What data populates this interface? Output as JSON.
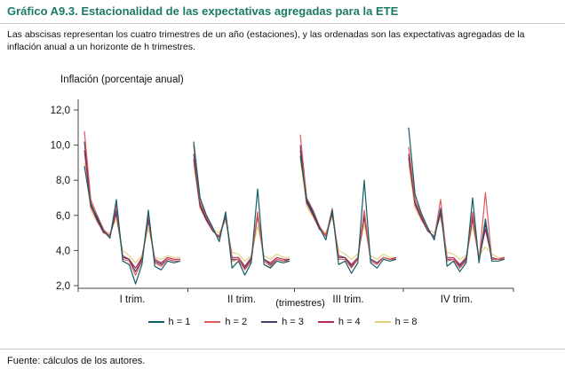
{
  "header": {
    "title": "Gráfico A9.3. Estacionalidad de las expectativas agregadas para la ETE"
  },
  "subtitle": "Las abscisas representan los cuatro trimestres de un año (estaciones), y las ordenadas son las expectativas agregadas de la inflación anual a un horizonte de h trimestres.",
  "footer": "Fuente: cálculos de los autores.",
  "chart_data": {
    "type": "line",
    "title": "Gráfico A9.3. Estacionalidad de las expectativas agregadas para la ETE",
    "ylabel": "Inflación (porcentaje anual)",
    "xlabel": "(trimestres)",
    "ylim": [
      2,
      12
    ],
    "grid": false,
    "legend_position": "bottom",
    "yticks": [
      {
        "value": 12,
        "label": "12,0"
      },
      {
        "value": 10,
        "label": "10,0"
      },
      {
        "value": 8,
        "label": "8,0"
      },
      {
        "value": 6,
        "label": "6,0"
      },
      {
        "value": 4,
        "label": "4,0"
      },
      {
        "value": 2,
        "label": "2,0"
      }
    ],
    "series": [
      {
        "name": "h = 1",
        "color": "#115e67"
      },
      {
        "name": "h = 2",
        "color": "#e4575a"
      },
      {
        "name": "h = 3",
        "color": "#4a3c66"
      },
      {
        "name": "h = 4",
        "color": "#b62758"
      },
      {
        "name": "h = 8",
        "color": "#e3d27f"
      }
    ],
    "panels": [
      {
        "label": "I trim.",
        "values": [
          [
            8.8,
            6.6,
            5.9,
            5.1,
            4.7,
            6.9,
            3.4,
            3.2,
            2.1,
            3.2,
            6.3,
            3.1,
            2.9,
            3.4,
            3.3,
            3.4
          ],
          [
            10.8,
            6.9,
            6.0,
            5.2,
            4.8,
            6.6,
            3.5,
            3.4,
            2.6,
            3.4,
            6.1,
            3.3,
            3.1,
            3.5,
            3.4,
            3.4
          ],
          [
            10.2,
            6.7,
            5.8,
            5.1,
            4.8,
            6.3,
            3.6,
            3.5,
            2.8,
            3.5,
            5.9,
            3.4,
            3.2,
            3.5,
            3.4,
            3.4
          ],
          [
            9.7,
            6.5,
            5.7,
            5.0,
            4.9,
            6.1,
            3.7,
            3.5,
            3.0,
            3.6,
            5.7,
            3.5,
            3.3,
            3.6,
            3.5,
            3.5
          ],
          [
            9.0,
            6.3,
            5.6,
            5.1,
            5.0,
            5.8,
            4.0,
            3.7,
            3.3,
            3.7,
            5.3,
            3.6,
            3.5,
            3.7,
            3.6,
            3.6
          ]
        ]
      },
      {
        "label": "II trim.",
        "values": [
          [
            10.2,
            7.0,
            6.0,
            5.3,
            4.5,
            6.2,
            3.0,
            3.4,
            2.6,
            3.3,
            7.5,
            3.2,
            3.0,
            3.4,
            3.3,
            3.4
          ],
          [
            10.0,
            6.8,
            5.9,
            5.2,
            4.7,
            6.1,
            3.4,
            3.5,
            2.9,
            3.4,
            6.2,
            3.4,
            3.1,
            3.5,
            3.4,
            3.4
          ],
          [
            9.5,
            6.6,
            5.8,
            5.1,
            4.8,
            6.0,
            3.5,
            3.5,
            3.0,
            3.5,
            6.0,
            3.5,
            3.2,
            3.5,
            3.4,
            3.5
          ],
          [
            9.2,
            6.5,
            5.7,
            5.1,
            4.8,
            5.9,
            3.6,
            3.6,
            3.1,
            3.6,
            6.1,
            3.5,
            3.3,
            3.6,
            3.5,
            3.5
          ],
          [
            8.9,
            6.4,
            5.7,
            5.2,
            5.0,
            5.7,
            3.9,
            3.8,
            3.4,
            3.7,
            5.4,
            3.7,
            3.5,
            3.8,
            3.6,
            3.6
          ]
        ]
      },
      {
        "label": "III trim.",
        "values": [
          [
            9.4,
            6.9,
            6.2,
            5.3,
            4.6,
            6.3,
            3.2,
            3.4,
            2.7,
            3.3,
            8.0,
            3.3,
            3.0,
            3.5,
            3.4,
            3.5
          ],
          [
            10.6,
            7.0,
            6.3,
            5.4,
            4.8,
            6.4,
            3.5,
            3.5,
            3.0,
            3.5,
            6.3,
            3.4,
            3.2,
            3.6,
            3.5,
            3.5
          ],
          [
            10.0,
            6.8,
            6.1,
            5.3,
            4.8,
            6.2,
            3.6,
            3.6,
            3.1,
            3.5,
            6.1,
            3.5,
            3.3,
            3.6,
            3.5,
            3.5
          ],
          [
            9.7,
            6.7,
            6.0,
            5.2,
            4.9,
            6.1,
            3.7,
            3.6,
            3.2,
            3.6,
            5.9,
            3.5,
            3.3,
            3.6,
            3.5,
            3.6
          ],
          [
            9.2,
            6.5,
            5.9,
            5.3,
            5.0,
            5.9,
            4.0,
            3.8,
            3.5,
            3.8,
            5.5,
            3.7,
            3.5,
            3.8,
            3.6,
            3.6
          ]
        ]
      },
      {
        "label": "IV trim.",
        "values": [
          [
            11.0,
            7.2,
            6.1,
            5.3,
            4.6,
            6.4,
            3.1,
            3.4,
            2.8,
            3.3,
            7.0,
            3.3,
            5.8,
            3.4,
            3.4,
            3.5
          ],
          [
            9.9,
            6.9,
            6.0,
            5.2,
            4.7,
            6.9,
            3.4,
            3.5,
            3.0,
            3.4,
            6.2,
            3.4,
            7.3,
            3.5,
            3.5,
            3.5
          ],
          [
            9.5,
            6.7,
            5.9,
            5.1,
            4.8,
            6.3,
            3.5,
            3.5,
            3.1,
            3.5,
            6.0,
            3.5,
            5.5,
            3.5,
            3.5,
            3.5
          ],
          [
            9.3,
            6.6,
            5.8,
            5.1,
            4.8,
            6.1,
            3.6,
            3.6,
            3.2,
            3.6,
            5.8,
            3.5,
            5.2,
            3.6,
            3.5,
            3.6
          ],
          [
            8.9,
            6.4,
            5.7,
            5.2,
            5.0,
            5.9,
            3.9,
            3.8,
            3.5,
            3.7,
            5.4,
            3.7,
            4.2,
            3.8,
            3.6,
            3.6
          ]
        ]
      }
    ]
  }
}
